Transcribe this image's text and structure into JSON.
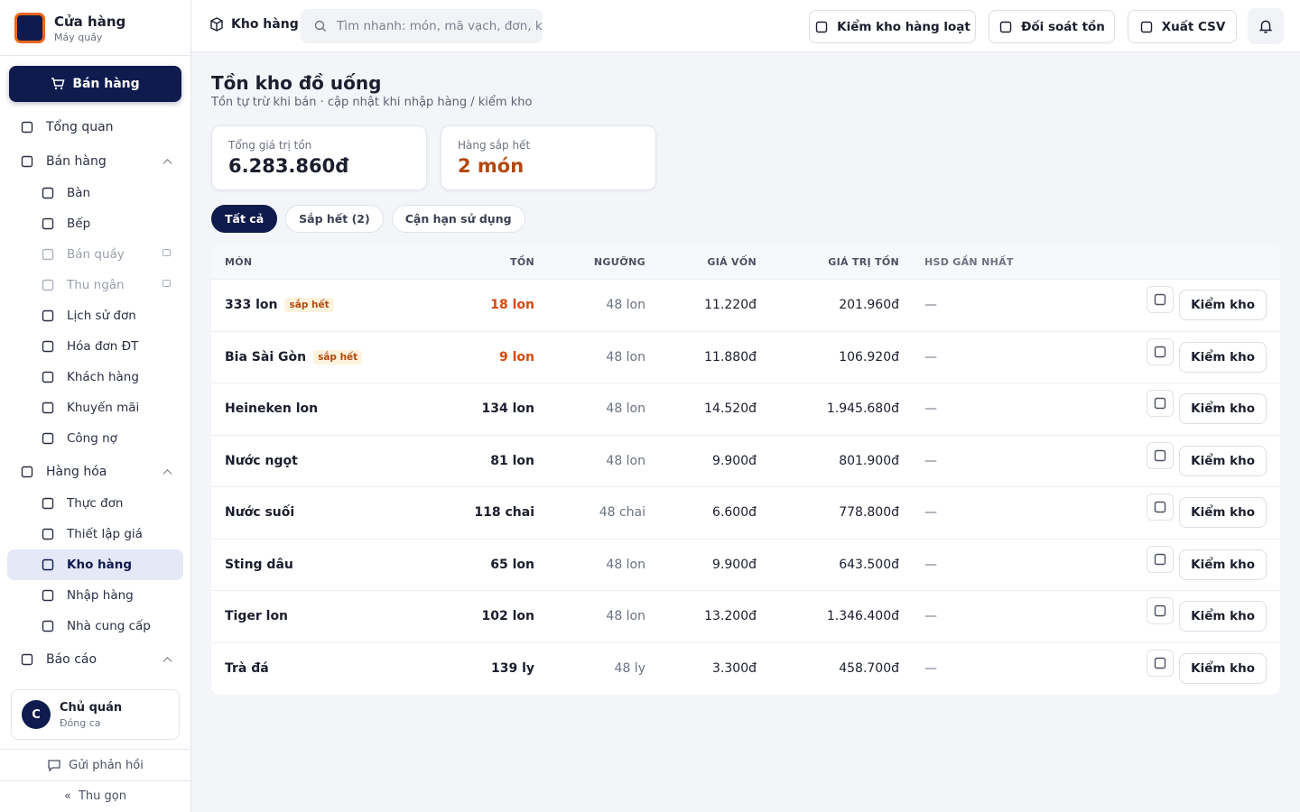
{
  "sidebar": {
    "brand": {
      "title": "Cửa hàng",
      "subtitle": "Máy quầy"
    },
    "primary_action": "Bán hàng",
    "nav": [
      {
        "label": "Tổng quan"
      },
      {
        "label": "Bán hàng",
        "expanded": true,
        "children": [
          {
            "label": "Bàn"
          },
          {
            "label": "Bếp"
          },
          {
            "label": "Bán quầy",
            "locked": true
          },
          {
            "label": "Thu ngân",
            "locked": true
          },
          {
            "label": "Lịch sử đơn"
          },
          {
            "label": "Hóa đơn ĐT"
          },
          {
            "label": "Khách hàng"
          },
          {
            "label": "Khuyến mãi"
          },
          {
            "label": "Công nợ"
          }
        ]
      },
      {
        "label": "Hàng hóa",
        "expanded": true,
        "children": [
          {
            "label": "Thực đơn"
          },
          {
            "label": "Thiết lập giá"
          },
          {
            "label": "Kho hàng",
            "active": true
          },
          {
            "label": "Nhập hàng"
          },
          {
            "label": "Nhà cung cấp"
          }
        ]
      },
      {
        "label": "Báo cáo",
        "expanded": true
      }
    ],
    "user": {
      "avatar": "C",
      "name": "Chủ quán",
      "status": "Đóng ca"
    },
    "feedback": "Gửi phản hồi",
    "collapse": "Thu gọn"
  },
  "topbar": {
    "breadcrumb": "Kho hàng",
    "search_placeholder": "Tìm nhanh: món, mã vạch, đơn, k",
    "actions": [
      "Kiểm kho hàng loạt",
      "Đối soát tồn",
      "Xuất CSV"
    ]
  },
  "page": {
    "title": "Tồn kho đồ uống",
    "subtitle": "Tồn tự trừ khi bán · cập nhật khi nhập hàng / kiểm kho",
    "stats": [
      {
        "label": "Tổng giá trị tồn",
        "value": "6.283.860đ"
      },
      {
        "label": "Hàng sắp hết",
        "value": "2 món",
        "warning": true
      }
    ],
    "tabs": [
      {
        "label": "Tất cả",
        "active": true
      },
      {
        "label": "Sắp hết (2)"
      },
      {
        "label": "Cận hạn sử dụng"
      }
    ],
    "table": {
      "columns": [
        "MÓN",
        "TỒN",
        "NGƯỠNG",
        "GIÁ VỐN",
        "GIÁ TRỊ TỒN",
        "HSD GẦN NHẤT"
      ],
      "rows": [
        {
          "name": "333 lon",
          "badge": "sắp hết",
          "stock": "18 lon",
          "low": true,
          "threshold": "48 lon",
          "cost": "11.220đ",
          "value": "201.960đ",
          "expiry": "—",
          "action": "Kiểm kho"
        },
        {
          "name": "Bia Sài Gòn",
          "badge": "sắp hết",
          "stock": "9 lon",
          "low": true,
          "threshold": "48 lon",
          "cost": "11.880đ",
          "value": "106.920đ",
          "expiry": "—",
          "action": "Kiểm kho"
        },
        {
          "name": "Heineken lon",
          "stock": "134 lon",
          "threshold": "48 lon",
          "cost": "14.520đ",
          "value": "1.945.680đ",
          "expiry": "—",
          "action": "Kiểm kho"
        },
        {
          "name": "Nước ngọt",
          "stock": "81 lon",
          "threshold": "48 lon",
          "cost": "9.900đ",
          "value": "801.900đ",
          "expiry": "—",
          "action": "Kiểm kho"
        },
        {
          "name": "Nước suối",
          "stock": "118 chai",
          "threshold": "48 chai",
          "cost": "6.600đ",
          "value": "778.800đ",
          "expiry": "—",
          "action": "Kiểm kho"
        },
        {
          "name": "Sting dâu",
          "stock": "65 lon",
          "threshold": "48 lon",
          "cost": "9.900đ",
          "value": "643.500đ",
          "expiry": "—",
          "action": "Kiểm kho"
        },
        {
          "name": "Tiger lon",
          "stock": "102 lon",
          "threshold": "48 lon",
          "cost": "13.200đ",
          "value": "1.346.400đ",
          "expiry": "—",
          "action": "Kiểm kho"
        },
        {
          "name": "Trà đá",
          "stock": "139 ly",
          "threshold": "48 ly",
          "cost": "3.300đ",
          "value": "458.700đ",
          "expiry": "—",
          "action": "Kiểm kho"
        }
      ]
    }
  }
}
